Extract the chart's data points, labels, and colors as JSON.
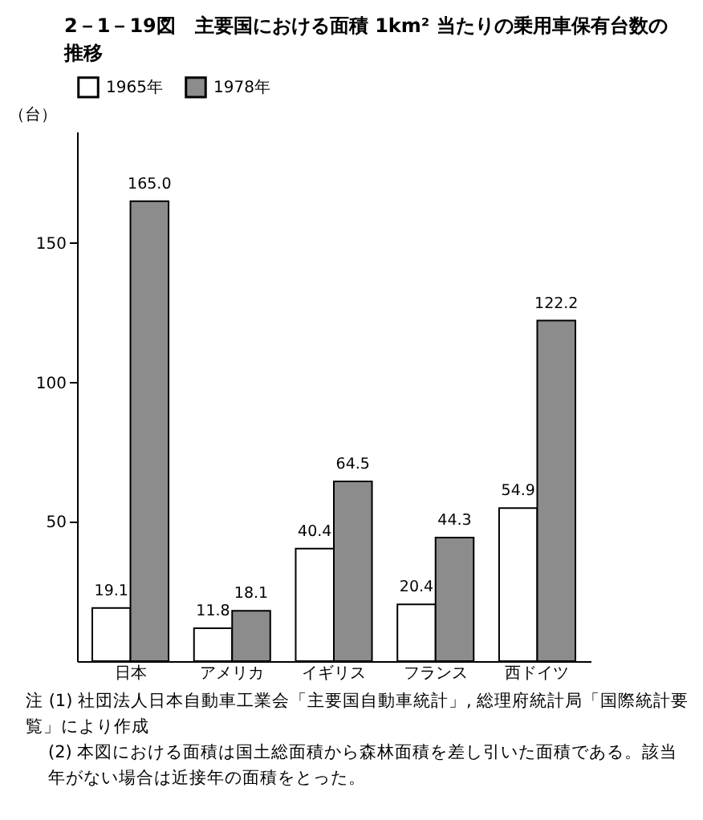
{
  "chart_data": {
    "type": "bar",
    "title": "2－1－19図　主要国における面積 1km² 当たりの乗用車保有台数の推移",
    "ylabel": "（台）",
    "categories": [
      "日本",
      "アメリカ",
      "イギリス",
      "フランス",
      "西ドイツ"
    ],
    "series": [
      {
        "name": "1965年",
        "color": "#ffffff",
        "values": [
          19.1,
          11.8,
          40.4,
          20.4,
          54.9
        ],
        "value_labels": [
          "19.1",
          "11.8",
          "40.4",
          "20.4",
          "54.9"
        ]
      },
      {
        "name": "1978年",
        "color": "#8c8c8c",
        "values": [
          165.0,
          18.1,
          64.5,
          44.3,
          122.2
        ],
        "value_labels": [
          "165.0",
          "18.1",
          "64.5",
          "44.3",
          "122.2"
        ]
      }
    ],
    "ylim": [
      0,
      190
    ],
    "yticks": [
      50,
      100,
      150
    ],
    "grid": false,
    "legend": "top",
    "annotations": [
      "注 (1) 社団法人日本自動車工業会「主要国自動車統計」, 総理府統計局「国際統計要覧」により作成",
      "(2) 本図における面積は国土総面積から森林面積を差し引いた面積である。該当年がない場合は近接年の面積をとった。"
    ]
  }
}
